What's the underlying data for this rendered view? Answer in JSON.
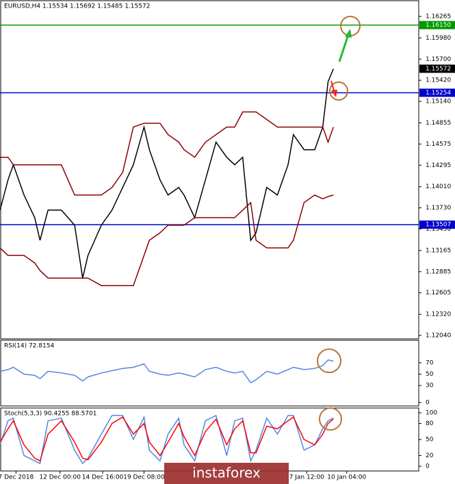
{
  "chart_data": [
    {
      "type": "line",
      "title": "EURUSD,H4  1.15534 1.15692 1.15485 1.15572",
      "xlim": [
        0,
        157
      ],
      "ylim": [
        1.11995,
        1.16455
      ],
      "yticks": [
        1.16265,
        {
          "value": 1.1598,
          "label": "1.15980"
        },
        {
          "value": 1.157,
          "label": "1.15700"
        },
        {
          "value": 1.1542,
          "label": "1.15420"
        },
        {
          "value": 1.1514,
          "label": "1.15140"
        },
        1.14855,
        1.14575,
        1.14295,
        {
          "value": 1.1401,
          "label": "1.14010"
        },
        {
          "value": 1.1373,
          "label": "1.13730"
        },
        {
          "value": 1.1345,
          "label": "1.13450"
        },
        1.13165,
        1.12885,
        1.12605,
        {
          "value": 1.1232,
          "label": "1.12320"
        },
        {
          "value": 1.1204,
          "label": "1.12040"
        }
      ],
      "levels": [
        {
          "value": 1.1615,
          "label": "1.16150",
          "color": "#009900"
        },
        {
          "value": 1.15254,
          "color": "#0000cc"
        },
        {
          "value": 1.13507,
          "color": "#0000cc"
        },
        {
          "value": 1.15572,
          "color": "#000000"
        }
      ],
      "x": [
        0,
        3,
        5,
        9,
        13,
        15,
        18,
        23,
        28,
        31,
        33,
        38,
        42,
        46,
        50,
        54,
        56,
        60,
        63,
        67,
        69,
        73,
        77,
        81,
        85,
        88,
        91,
        94,
        96,
        100,
        104,
        108,
        110,
        114,
        118,
        121,
        123,
        125
      ],
      "series": [
        {
          "color": "#000000",
          "values": [
            1.137,
            1.141,
            1.143,
            1.139,
            1.136,
            1.133,
            1.137,
            1.137,
            1.135,
            1.128,
            1.131,
            1.135,
            1.137,
            1.14,
            1.143,
            1.148,
            1.145,
            1.141,
            1.139,
            1.14,
            1.139,
            1.136,
            1.141,
            1.146,
            1.144,
            1.143,
            1.144,
            1.133,
            1.134,
            1.14,
            1.139,
            1.143,
            1.147,
            1.145,
            1.145,
            1.148,
            1.154,
            1.1557
          ]
        },
        {
          "color": "#8b0000",
          "values": [
            1.144,
            1.144,
            1.143,
            1.143,
            1.143,
            1.143,
            1.143,
            1.143,
            1.139,
            1.139,
            1.139,
            1.139,
            1.14,
            1.142,
            1.148,
            1.1485,
            1.1485,
            1.1485,
            1.147,
            1.146,
            1.145,
            1.144,
            1.146,
            1.147,
            1.148,
            1.148,
            1.15,
            1.15,
            1.15,
            1.149,
            1.148,
            1.148,
            1.148,
            1.148,
            1.148,
            1.148,
            1.146,
            1.148
          ]
        },
        {
          "color": "#8b0000",
          "values": [
            1.132,
            1.131,
            1.131,
            1.131,
            1.13,
            1.129,
            1.128,
            1.128,
            1.128,
            1.128,
            1.128,
            1.127,
            1.127,
            1.127,
            1.127,
            1.131,
            1.133,
            1.134,
            1.135,
            1.135,
            1.135,
            1.136,
            1.136,
            1.136,
            1.136,
            1.136,
            1.137,
            1.138,
            1.133,
            1.132,
            1.132,
            1.132,
            1.133,
            1.138,
            1.139,
            1.1385,
            1.1388,
            1.139
          ]
        }
      ]
    },
    {
      "type": "line",
      "title": "RSI(14) 72.8154",
      "xlim": [
        0,
        157
      ],
      "ylim": [
        0,
        100
      ],
      "yticks": [
        0,
        30,
        50,
        70
      ],
      "x": [
        0,
        3,
        5,
        9,
        13,
        15,
        18,
        23,
        28,
        31,
        33,
        38,
        42,
        46,
        50,
        54,
        56,
        60,
        63,
        67,
        69,
        73,
        77,
        81,
        85,
        88,
        91,
        94,
        96,
        100,
        104,
        108,
        110,
        114,
        118,
        121,
        123,
        125
      ],
      "series": [
        {
          "color": "#4f86e0",
          "values": [
            55,
            58,
            62,
            50,
            48,
            42,
            55,
            52,
            48,
            38,
            45,
            52,
            56,
            60,
            62,
            68,
            55,
            50,
            48,
            52,
            50,
            45,
            58,
            62,
            55,
            52,
            55,
            35,
            40,
            55,
            50,
            58,
            62,
            58,
            60,
            65,
            75,
            72.8154
          ]
        }
      ]
    },
    {
      "type": "line",
      "title": "Stoch(5,3,3) 90.4255 88.5701",
      "xlim": [
        0,
        157
      ],
      "ylim": [
        0,
        100
      ],
      "yticks": [
        0,
        20,
        50,
        80,
        100
      ],
      "xticks": [
        {
          "value": 6,
          "label": "7 Dec 2018"
        },
        {
          "value": 22.5,
          "label": "12 Dec 00:00"
        },
        {
          "value": 38.5,
          "label": "14 Dec 16:00"
        },
        {
          "value": 54,
          "label": "19 Dec 08:00"
        },
        {
          "value": 115,
          "label": "7 Jan 12:00"
        },
        {
          "value": 130,
          "label": "10 Jan 04:00"
        }
      ],
      "x": [
        0,
        3,
        5,
        9,
        13,
        15,
        18,
        23,
        28,
        31,
        33,
        38,
        42,
        46,
        50,
        54,
        56,
        60,
        63,
        67,
        69,
        73,
        77,
        81,
        85,
        88,
        91,
        94,
        96,
        100,
        104,
        108,
        110,
        114,
        118,
        121,
        123,
        125
      ],
      "series": [
        {
          "color": "#4f86e0",
          "values": [
            40,
            85,
            90,
            20,
            10,
            5,
            85,
            90,
            30,
            5,
            15,
            60,
            95,
            95,
            50,
            92,
            30,
            10,
            60,
            90,
            40,
            10,
            85,
            95,
            20,
            85,
            90,
            10,
            30,
            90,
            60,
            95,
            95,
            30,
            40,
            70,
            85,
            90.4255
          ]
        },
        {
          "color": "#ff0000",
          "values": [
            45,
            70,
            85,
            40,
            15,
            10,
            60,
            85,
            45,
            15,
            12,
            45,
            80,
            92,
            60,
            80,
            45,
            20,
            45,
            80,
            55,
            20,
            65,
            88,
            40,
            70,
            85,
            25,
            25,
            75,
            70,
            85,
            92,
            50,
            40,
            60,
            80,
            88.5701
          ]
        }
      ]
    }
  ],
  "watermark": "instaforex"
}
